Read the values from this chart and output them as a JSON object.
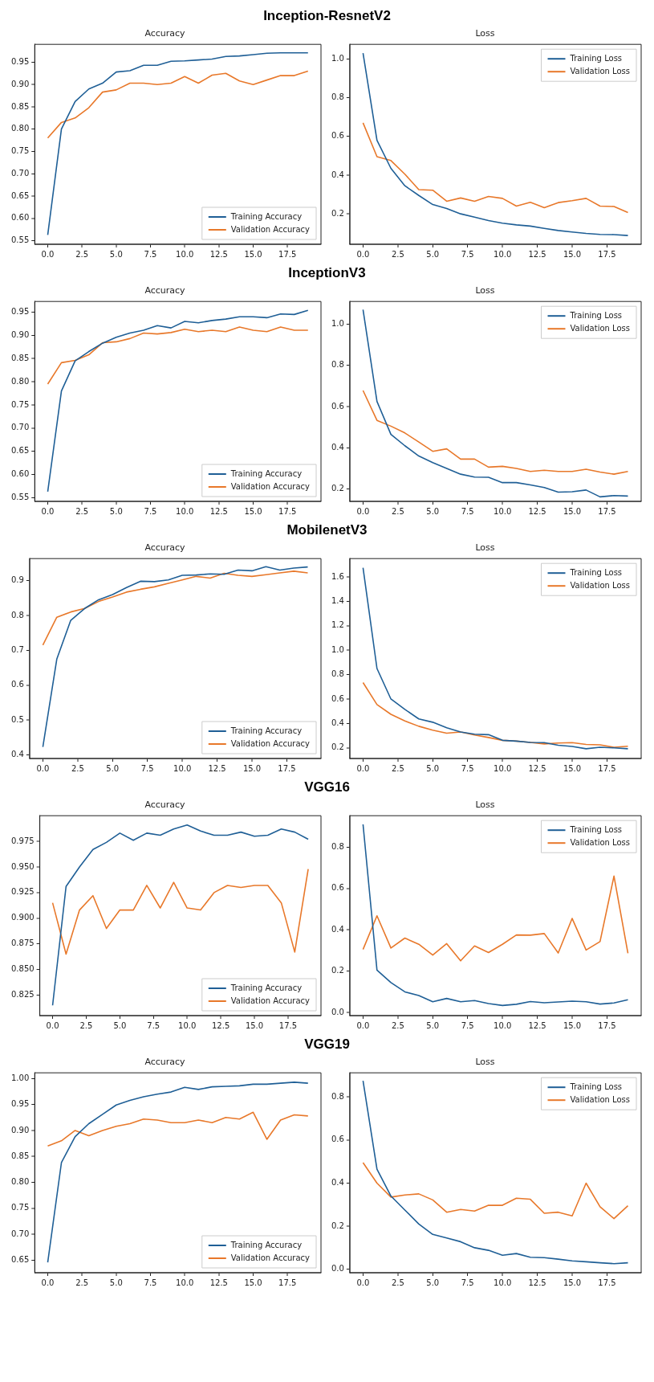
{
  "chart_data": [
    {
      "type": "line",
      "title": "Accuracy",
      "annotations": [
        "Inception-ResnetV2"
      ],
      "x": [
        0,
        1,
        2,
        3,
        4,
        5,
        6,
        7,
        8,
        9,
        10,
        11,
        12,
        13,
        14,
        15,
        16,
        17,
        18,
        19
      ],
      "xlim": [
        -0.95,
        19.95
      ],
      "xticks": [
        {
          "value": 0,
          "label": "0.0"
        },
        2.5,
        {
          "value": 5,
          "label": "5.0"
        },
        7.5,
        {
          "value": 10,
          "label": "10.0"
        },
        12.5,
        {
          "value": 15,
          "label": "15.0"
        },
        17.5
      ],
      "ylim": [
        0.542,
        0.99
      ],
      "yticks": [
        0.55,
        {
          "value": 0.6,
          "label": "0.60"
        },
        0.65,
        {
          "value": 0.7,
          "label": "0.70"
        },
        0.75,
        {
          "value": 0.8,
          "label": "0.80"
        },
        0.85,
        {
          "value": 0.9,
          "label": "0.90"
        },
        0.95
      ],
      "legend": "bottom right",
      "series": [
        {
          "name": "Training Accuracy",
          "color": "#1f5f96",
          "values": [
            0.563,
            0.8,
            0.862,
            0.89,
            0.903,
            0.928,
            0.931,
            0.943,
            0.943,
            0.952,
            0.953,
            0.955,
            0.957,
            0.963,
            0.964,
            0.967,
            0.97,
            0.971,
            0.971,
            0.971
          ]
        },
        {
          "name": "Validation Accuracy",
          "color": "#e8782a",
          "values": [
            0.78,
            0.815,
            0.825,
            0.848,
            0.883,
            0.888,
            0.903,
            0.903,
            0.9,
            0.903,
            0.918,
            0.903,
            0.921,
            0.925,
            0.908,
            0.9,
            0.91,
            0.92,
            0.92,
            0.93
          ]
        }
      ]
    },
    {
      "type": "line",
      "title": "Loss",
      "x": [
        0,
        1,
        2,
        3,
        4,
        5,
        6,
        7,
        8,
        9,
        10,
        11,
        12,
        13,
        14,
        15,
        16,
        17,
        18,
        19
      ],
      "xlim": [
        -0.95,
        19.95
      ],
      "xticks": [
        {
          "value": 0,
          "label": "0.0"
        },
        2.5,
        {
          "value": 5,
          "label": "5.0"
        },
        7.5,
        {
          "value": 10,
          "label": "10.0"
        },
        12.5,
        {
          "value": 15,
          "label": "15.0"
        },
        17.5
      ],
      "ylim": [
        0.043,
        1.075
      ],
      "yticks": [
        0.2,
        0.4,
        0.6,
        0.8,
        {
          "value": 1,
          "label": "1.0"
        }
      ],
      "legend": "top right",
      "series": [
        {
          "name": "Training Loss",
          "color": "#1f5f96",
          "values": [
            1.03,
            0.58,
            0.435,
            0.345,
            0.295,
            0.248,
            0.228,
            0.2,
            0.183,
            0.165,
            0.152,
            0.143,
            0.137,
            0.125,
            0.114,
            0.106,
            0.099,
            0.094,
            0.093,
            0.088
          ]
        },
        {
          "name": "Validation Loss",
          "color": "#e8782a",
          "values": [
            0.67,
            0.495,
            0.475,
            0.405,
            0.325,
            0.322,
            0.265,
            0.282,
            0.265,
            0.29,
            0.28,
            0.24,
            0.26,
            0.232,
            0.258,
            0.268,
            0.28,
            0.24,
            0.238,
            0.207
          ]
        }
      ]
    },
    {
      "type": "line",
      "title": "Accuracy",
      "annotations": [
        "InceptionV3"
      ],
      "x": [
        0,
        1,
        2,
        3,
        4,
        5,
        6,
        7,
        8,
        9,
        10,
        11,
        12,
        13,
        14,
        15,
        16,
        17,
        18,
        19
      ],
      "xlim": [
        -0.95,
        19.95
      ],
      "xticks": [
        {
          "value": 0,
          "label": "0.0"
        },
        2.5,
        {
          "value": 5,
          "label": "5.0"
        },
        7.5,
        {
          "value": 10,
          "label": "10.0"
        },
        12.5,
        {
          "value": 15,
          "label": "15.0"
        },
        17.5
      ],
      "ylim": [
        0.542,
        0.973
      ],
      "yticks": [
        0.55,
        {
          "value": 0.6,
          "label": "0.60"
        },
        0.65,
        {
          "value": 0.7,
          "label": "0.70"
        },
        0.75,
        {
          "value": 0.8,
          "label": "0.80"
        },
        0.85,
        {
          "value": 0.9,
          "label": "0.90"
        },
        0.95
      ],
      "legend": "bottom right",
      "series": [
        {
          "name": "Training Accuracy",
          "color": "#1f5f96",
          "values": [
            0.563,
            0.78,
            0.845,
            0.865,
            0.883,
            0.896,
            0.905,
            0.911,
            0.921,
            0.916,
            0.93,
            0.927,
            0.932,
            0.935,
            0.94,
            0.94,
            0.938,
            0.946,
            0.945,
            0.954
          ]
        },
        {
          "name": "Validation Accuracy",
          "color": "#e8782a",
          "values": [
            0.795,
            0.841,
            0.846,
            0.858,
            0.884,
            0.886,
            0.893,
            0.905,
            0.903,
            0.906,
            0.913,
            0.908,
            0.911,
            0.908,
            0.918,
            0.911,
            0.908,
            0.918,
            0.911,
            0.911
          ]
        }
      ]
    },
    {
      "type": "line",
      "title": "Loss",
      "x": [
        0,
        1,
        2,
        3,
        4,
        5,
        6,
        7,
        8,
        9,
        10,
        11,
        12,
        13,
        14,
        15,
        16,
        17,
        18,
        19
      ],
      "xlim": [
        -0.95,
        19.95
      ],
      "xticks": [
        {
          "value": 0,
          "label": "0.0"
        },
        2.5,
        {
          "value": 5,
          "label": "5.0"
        },
        7.5,
        {
          "value": 10,
          "label": "10.0"
        },
        12.5,
        {
          "value": 15,
          "label": "15.0"
        },
        17.5
      ],
      "ylim": [
        0.14,
        1.11
      ],
      "yticks": [
        0.2,
        0.4,
        0.6,
        0.8,
        {
          "value": 1,
          "label": "1.0"
        }
      ],
      "legend": "top right",
      "series": [
        {
          "name": "Training Loss",
          "color": "#1f5f96",
          "values": [
            1.07,
            0.625,
            0.465,
            0.41,
            0.36,
            0.328,
            0.3,
            0.272,
            0.258,
            0.257,
            0.231,
            0.231,
            0.22,
            0.207,
            0.185,
            0.187,
            0.195,
            0.162,
            0.168,
            0.166
          ]
        },
        {
          "name": "Validation Loss",
          "color": "#e8782a",
          "values": [
            0.678,
            0.533,
            0.505,
            0.472,
            0.428,
            0.383,
            0.395,
            0.345,
            0.345,
            0.306,
            0.31,
            0.3,
            0.285,
            0.291,
            0.285,
            0.285,
            0.296,
            0.282,
            0.272,
            0.285
          ]
        }
      ]
    },
    {
      "type": "line",
      "title": "Accuracy",
      "annotations": [
        "MobilenetV3"
      ],
      "x": [
        0,
        1,
        2,
        3,
        4,
        5,
        6,
        7,
        8,
        9,
        10,
        11,
        12,
        13,
        14,
        15,
        16,
        17,
        18,
        19
      ],
      "xlim": [
        -0.95,
        19.95
      ],
      "xticks": [
        {
          "value": 0,
          "label": "0.0"
        },
        2.5,
        {
          "value": 5,
          "label": "5.0"
        },
        7.5,
        {
          "value": 10,
          "label": "10.0"
        },
        12.5,
        {
          "value": 15,
          "label": "15.0"
        },
        17.5
      ],
      "ylim": [
        0.39,
        0.963
      ],
      "yticks": [
        0.4,
        0.5,
        0.6,
        0.7,
        0.8,
        0.9
      ],
      "legend": "bottom right",
      "series": [
        {
          "name": "Training Accuracy",
          "color": "#1f5f96",
          "values": [
            0.423,
            0.675,
            0.786,
            0.82,
            0.845,
            0.86,
            0.88,
            0.898,
            0.897,
            0.902,
            0.915,
            0.916,
            0.919,
            0.918,
            0.93,
            0.928,
            0.94,
            0.93,
            0.936,
            0.939
          ]
        },
        {
          "name": "Validation Accuracy",
          "color": "#e8782a",
          "values": [
            0.715,
            0.795,
            0.81,
            0.82,
            0.84,
            0.853,
            0.867,
            0.875,
            0.882,
            0.892,
            0.902,
            0.912,
            0.907,
            0.921,
            0.915,
            0.912,
            0.917,
            0.922,
            0.927,
            0.922
          ]
        }
      ]
    },
    {
      "type": "line",
      "title": "Loss",
      "x": [
        0,
        1,
        2,
        3,
        4,
        5,
        6,
        7,
        8,
        9,
        10,
        11,
        12,
        13,
        14,
        15,
        16,
        17,
        18,
        19
      ],
      "xlim": [
        -0.95,
        19.95
      ],
      "xticks": [
        {
          "value": 0,
          "label": "0.0"
        },
        2.5,
        {
          "value": 5,
          "label": "5.0"
        },
        7.5,
        {
          "value": 10,
          "label": "10.0"
        },
        12.5,
        {
          "value": 15,
          "label": "15.0"
        },
        17.5
      ],
      "ylim": [
        0.113,
        1.75
      ],
      "yticks": [
        0.2,
        0.4,
        0.6,
        0.8,
        {
          "value": 1,
          "label": "1.0"
        },
        1.2,
        1.4,
        1.6
      ],
      "legend": "top right",
      "series": [
        {
          "name": "Training Loss",
          "color": "#1f5f96",
          "values": [
            1.675,
            0.85,
            0.6,
            0.515,
            0.437,
            0.41,
            0.365,
            0.33,
            0.312,
            0.308,
            0.262,
            0.255,
            0.245,
            0.243,
            0.222,
            0.212,
            0.193,
            0.205,
            0.2,
            0.193
          ]
        },
        {
          "name": "Validation Loss",
          "color": "#e8782a",
          "values": [
            0.735,
            0.555,
            0.475,
            0.42,
            0.377,
            0.345,
            0.32,
            0.33,
            0.305,
            0.285,
            0.262,
            0.255,
            0.245,
            0.232,
            0.24,
            0.243,
            0.228,
            0.225,
            0.205,
            0.213
          ]
        }
      ]
    },
    {
      "type": "line",
      "title": "Accuracy",
      "annotations": [
        "VGG16"
      ],
      "x": [
        0,
        1,
        2,
        3,
        4,
        5,
        6,
        7,
        8,
        9,
        10,
        11,
        12,
        13,
        14,
        15,
        16,
        17,
        18,
        19
      ],
      "xlim": [
        -0.95,
        19.95
      ],
      "xticks": [
        {
          "value": 0,
          "label": "0.0"
        },
        2.5,
        {
          "value": 5,
          "label": "5.0"
        },
        7.5,
        {
          "value": 10,
          "label": "10.0"
        },
        12.5,
        {
          "value": 15,
          "label": "15.0"
        },
        17.5
      ],
      "ylim": [
        0.805,
        1.0
      ],
      "yticks": [
        0.825,
        {
          "value": 0.85,
          "label": "0.850"
        },
        0.875,
        {
          "value": 0.9,
          "label": "0.900"
        },
        0.925,
        {
          "value": 0.95,
          "label": "0.950"
        },
        0.975
      ],
      "legend": "bottom right",
      "series": [
        {
          "name": "Training Accuracy",
          "color": "#1f5f96",
          "values": [
            0.815,
            0.931,
            0.95,
            0.967,
            0.974,
            0.983,
            0.976,
            0.983,
            0.981,
            0.987,
            0.991,
            0.985,
            0.981,
            0.981,
            0.984,
            0.98,
            0.981,
            0.987,
            0.984,
            0.977
          ]
        },
        {
          "name": "Validation Accuracy",
          "color": "#e8782a",
          "values": [
            0.915,
            0.865,
            0.908,
            0.922,
            0.89,
            0.908,
            0.908,
            0.932,
            0.91,
            0.935,
            0.91,
            0.908,
            0.925,
            0.932,
            0.93,
            0.932,
            0.932,
            0.915,
            0.867,
            0.948
          ]
        }
      ]
    },
    {
      "type": "line",
      "title": "Loss",
      "x": [
        0,
        1,
        2,
        3,
        4,
        5,
        6,
        7,
        8,
        9,
        10,
        11,
        12,
        13,
        14,
        15,
        16,
        17,
        18,
        19
      ],
      "xlim": [
        -0.95,
        19.95
      ],
      "xticks": [
        {
          "value": 0,
          "label": "0.0"
        },
        2.5,
        {
          "value": 5,
          "label": "5.0"
        },
        7.5,
        {
          "value": 10,
          "label": "10.0"
        },
        12.5,
        {
          "value": 15,
          "label": "15.0"
        },
        17.5
      ],
      "ylim": [
        -0.015,
        0.952
      ],
      "yticks": [
        {
          "value": 0,
          "label": "0.0"
        },
        0.2,
        0.4,
        0.6,
        0.8
      ],
      "legend": "top right",
      "series": [
        {
          "name": "Training Loss",
          "color": "#1f5f96",
          "values": [
            0.91,
            0.205,
            0.145,
            0.1,
            0.082,
            0.052,
            0.068,
            0.052,
            0.058,
            0.043,
            0.034,
            0.04,
            0.053,
            0.047,
            0.051,
            0.055,
            0.052,
            0.041,
            0.046,
            0.062
          ]
        },
        {
          "name": "Validation Loss",
          "color": "#e8782a",
          "values": [
            0.305,
            0.468,
            0.312,
            0.36,
            0.33,
            0.278,
            0.333,
            0.25,
            0.322,
            0.29,
            0.33,
            0.375,
            0.374,
            0.382,
            0.288,
            0.455,
            0.302,
            0.343,
            0.66,
            0.287
          ]
        }
      ]
    },
    {
      "type": "line",
      "title": "Accuracy",
      "annotations": [
        "VGG19"
      ],
      "x": [
        0,
        1,
        2,
        3,
        4,
        5,
        6,
        7,
        8,
        9,
        10,
        11,
        12,
        13,
        14,
        15,
        16,
        17,
        18,
        19
      ],
      "xlim": [
        -0.95,
        19.95
      ],
      "xticks": [
        {
          "value": 0,
          "label": "0.0"
        },
        2.5,
        {
          "value": 5,
          "label": "5.0"
        },
        7.5,
        {
          "value": 10,
          "label": "10.0"
        },
        12.5,
        {
          "value": 15,
          "label": "15.0"
        },
        17.5
      ],
      "ylim": [
        0.626,
        1.011
      ],
      "yticks": [
        0.65,
        {
          "value": 0.7,
          "label": "0.70"
        },
        0.75,
        {
          "value": 0.8,
          "label": "0.80"
        },
        0.85,
        {
          "value": 0.9,
          "label": "0.90"
        },
        0.95,
        {
          "value": 1,
          "label": "1.00"
        }
      ],
      "legend": "bottom right",
      "series": [
        {
          "name": "Training Accuracy",
          "color": "#1f5f96",
          "values": [
            0.646,
            0.838,
            0.888,
            0.913,
            0.931,
            0.949,
            0.958,
            0.965,
            0.97,
            0.974,
            0.983,
            0.979,
            0.984,
            0.985,
            0.986,
            0.989,
            0.989,
            0.991,
            0.993,
            0.991
          ]
        },
        {
          "name": "Validation Accuracy",
          "color": "#e8782a",
          "values": [
            0.87,
            0.88,
            0.9,
            0.89,
            0.9,
            0.908,
            0.913,
            0.922,
            0.92,
            0.915,
            0.915,
            0.92,
            0.915,
            0.925,
            0.922,
            0.935,
            0.883,
            0.92,
            0.93,
            0.928
          ]
        }
      ]
    },
    {
      "type": "line",
      "title": "Loss",
      "x": [
        0,
        1,
        2,
        3,
        4,
        5,
        6,
        7,
        8,
        9,
        10,
        11,
        12,
        13,
        14,
        15,
        16,
        17,
        18,
        19
      ],
      "xlim": [
        -0.95,
        19.95
      ],
      "xticks": [
        {
          "value": 0,
          "label": "0.0"
        },
        2.5,
        {
          "value": 5,
          "label": "5.0"
        },
        7.5,
        {
          "value": 10,
          "label": "10.0"
        },
        12.5,
        {
          "value": 15,
          "label": "15.0"
        },
        17.5
      ],
      "ylim": [
        -0.016,
        0.912
      ],
      "yticks": [
        {
          "value": 0,
          "label": "0.0"
        },
        0.2,
        0.4,
        0.6,
        0.8
      ],
      "legend": "top right",
      "series": [
        {
          "name": "Training Loss",
          "color": "#1f5f96",
          "values": [
            0.875,
            0.465,
            0.34,
            0.275,
            0.21,
            0.162,
            0.145,
            0.128,
            0.1,
            0.088,
            0.065,
            0.073,
            0.056,
            0.054,
            0.047,
            0.039,
            0.035,
            0.03,
            0.026,
            0.03
          ]
        },
        {
          "name": "Validation Loss",
          "color": "#e8782a",
          "values": [
            0.495,
            0.4,
            0.335,
            0.345,
            0.35,
            0.322,
            0.265,
            0.278,
            0.27,
            0.297,
            0.297,
            0.33,
            0.325,
            0.26,
            0.265,
            0.248,
            0.4,
            0.29,
            0.235,
            0.295
          ]
        }
      ]
    }
  ]
}
